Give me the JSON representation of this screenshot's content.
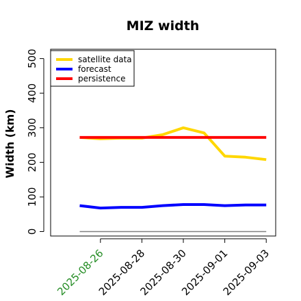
{
  "chart_data": {
    "type": "line",
    "title": "MIZ width",
    "xlabel": "",
    "ylabel": "Width (km)",
    "ylim": [
      0,
      500
    ],
    "yticks": [
      0,
      100,
      200,
      300,
      400,
      500
    ],
    "y_tick_labels": [
      "0",
      "100",
      "200",
      "300",
      "400",
      "500"
    ],
    "x": [
      "2025-08-25",
      "2025-08-26",
      "2025-08-27",
      "2025-08-28",
      "2025-08-29",
      "2025-08-30",
      "2025-08-31",
      "2025-09-01",
      "2025-09-02",
      "2025-09-03"
    ],
    "xticks": [
      "2025-08-26",
      "2025-08-28",
      "2025-08-30",
      "2025-09-01",
      "2025-09-03"
    ],
    "xtick_colors": [
      "#228b22",
      "#000000",
      "#000000",
      "#000000",
      "#000000"
    ],
    "grid": false,
    "legend_position": "top-left",
    "series": [
      {
        "name": "satellite data",
        "color": "#ffd700",
        "values": [
          272,
          268,
          270,
          270,
          280,
          300,
          285,
          218,
          215,
          208
        ]
      },
      {
        "name": "forecast",
        "color": "#0000ff",
        "values": [
          75,
          68,
          70,
          70,
          75,
          78,
          78,
          75,
          77,
          77
        ]
      },
      {
        "name": "persistence",
        "color": "#ff0000",
        "values": [
          272,
          272,
          272,
          272,
          272,
          272,
          272,
          272,
          272,
          272
        ]
      }
    ],
    "reference_line": {
      "value": 0,
      "color": "#808080"
    }
  }
}
